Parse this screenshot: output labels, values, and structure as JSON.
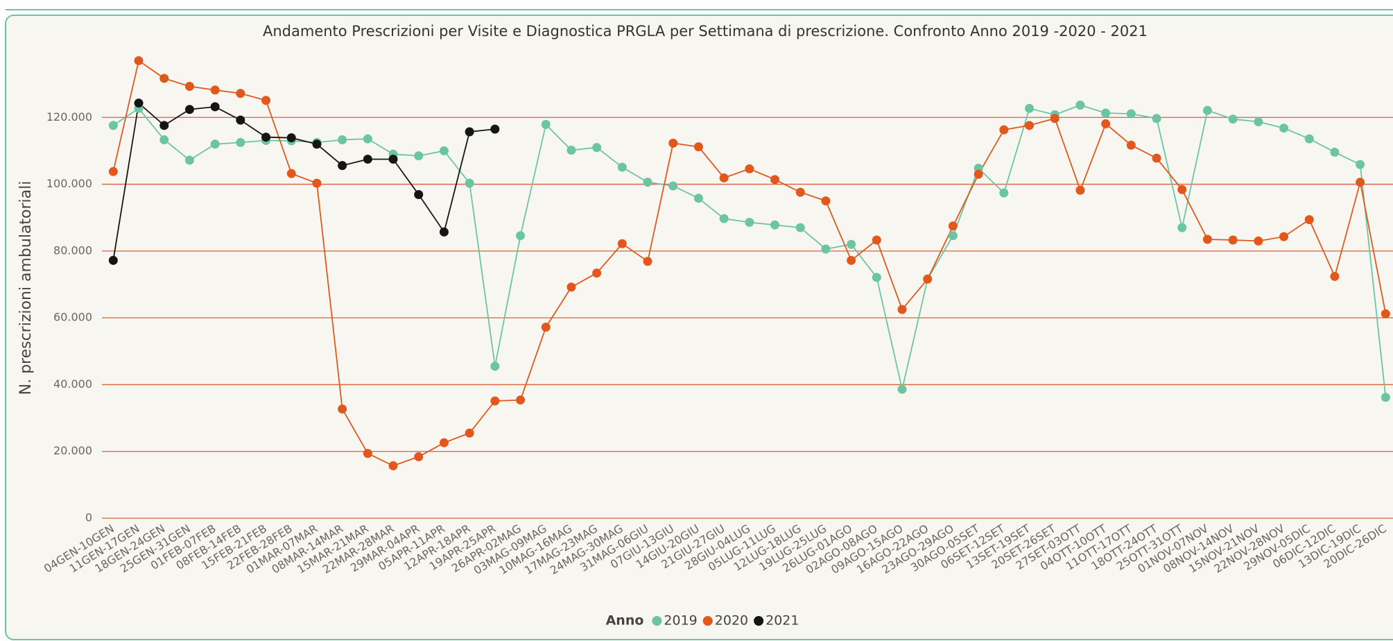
{
  "chart_data": {
    "type": "line",
    "title": "Andamento Prescrizioni per Visite e Diagnostica PRGLA per Settimana di prescrizione. Confronto Anno 2019 -2020 - 2021",
    "y_label": "N. prescrizioni ambulatoriali",
    "legend_title": "Anno",
    "legend_position": "bottom",
    "grid": true,
    "categories": [
      "04GEN-10GEN",
      "11GEN-17GEN",
      "18GEN-24GEN",
      "25GEN-31GEN",
      "01FEB-07FEB",
      "08FEB-14FEB",
      "15FEB-21FEB",
      "22FEB-28FEB",
      "01MAR-07MAR",
      "08MAR-14MAR",
      "15MAR-21MAR",
      "22MAR-28MAR",
      "29MAR-04APR",
      "05APR-11APR",
      "12APR-18APR",
      "19APR-25APR",
      "26APR-02MAG",
      "03MAG-09MAG",
      "10MAG-16MAG",
      "17MAG-23MAG",
      "24MAG-30MAG",
      "31MAG-06GIU",
      "07GIU-13GIU",
      "14GIU-20GIU",
      "21GIU-27GIU",
      "28GIU-04LUG",
      "05LUG-11LUG",
      "12LUG-18LUG",
      "19LUG-25LUG",
      "26LUG-01AGO",
      "02AGO-08AGO",
      "09AGO-15AGO",
      "16AGO-22AGO",
      "23AGO-29AGO",
      "30AGO-05SET",
      "06SET-12SET",
      "13SET-19SET",
      "20SET-26SET",
      "27SET-03OTT",
      "04OTT-10OTT",
      "11OTT-17OTT",
      "18OTT-24OTT",
      "25OTT-31OTT",
      "01NOV-07NOV",
      "08NOV-14NOV",
      "15NOV-21NOV",
      "22NOV-28NOV",
      "29NOV-05DIC",
      "06DIC-12DIC",
      "13DIC-19DIC",
      "20DIC-26DIC"
    ],
    "series": [
      {
        "name": "2019",
        "color": "#6cc5a2",
        "values": [
          117600,
          122700,
          113300,
          107200,
          112000,
          112500,
          113100,
          113000,
          112500,
          113300,
          113600,
          109000,
          108500,
          110000,
          100300,
          45500,
          84600,
          117900,
          110200,
          111000,
          105100,
          100600,
          99500,
          95800,
          89700,
          88600,
          87800,
          87000,
          80600,
          82000,
          72100,
          38600,
          71600,
          84600,
          104800,
          97400,
          122700,
          120800,
          123700,
          121300,
          121100,
          119700,
          87000,
          122100,
          119500,
          118700,
          116800,
          113600,
          109600,
          105900,
          36200
        ]
      },
      {
        "name": "2020",
        "color": "#e2581c",
        "values": [
          103800,
          137000,
          131700,
          129300,
          128200,
          127200,
          125100,
          103200,
          100300,
          32700,
          19400,
          15700,
          18400,
          22600,
          25500,
          35100,
          35400,
          57200,
          69200,
          73400,
          82200,
          76900,
          112300,
          111200,
          101900,
          104600,
          101400,
          97600,
          95000,
          77200,
          83300,
          62500,
          71600,
          87500,
          103000,
          116300,
          117600,
          119700,
          98200,
          118100,
          111700,
          107800,
          98400,
          83500,
          83300,
          83000,
          84300,
          89400,
          72400,
          100600,
          61200
        ]
      },
      {
        "name": "2021",
        "color": "#151515",
        "values": [
          77200,
          124300,
          117600,
          122400,
          123200,
          119200,
          114100,
          113900,
          112000,
          105600,
          107500,
          107500,
          96900,
          85700,
          115700,
          116500,
          null,
          null,
          null,
          null,
          null,
          null,
          null,
          null,
          null,
          null,
          null,
          null,
          null,
          null,
          null,
          null,
          null,
          null,
          null,
          null,
          null,
          null,
          null,
          null,
          null,
          null,
          null,
          null,
          null,
          null,
          null,
          null,
          null,
          null,
          null
        ]
      }
    ],
    "ylim": [
      0,
      140000
    ],
    "yticks": [
      0,
      {
        "value": 20000,
        "label": "20.000"
      },
      {
        "value": 40000,
        "label": "40.000"
      },
      {
        "value": 60000,
        "label": "60.000"
      },
      {
        "value": 80000,
        "label": "80.000"
      },
      {
        "value": 100000,
        "label": "100.000"
      },
      {
        "value": 120000,
        "label": "120.000"
      }
    ]
  }
}
